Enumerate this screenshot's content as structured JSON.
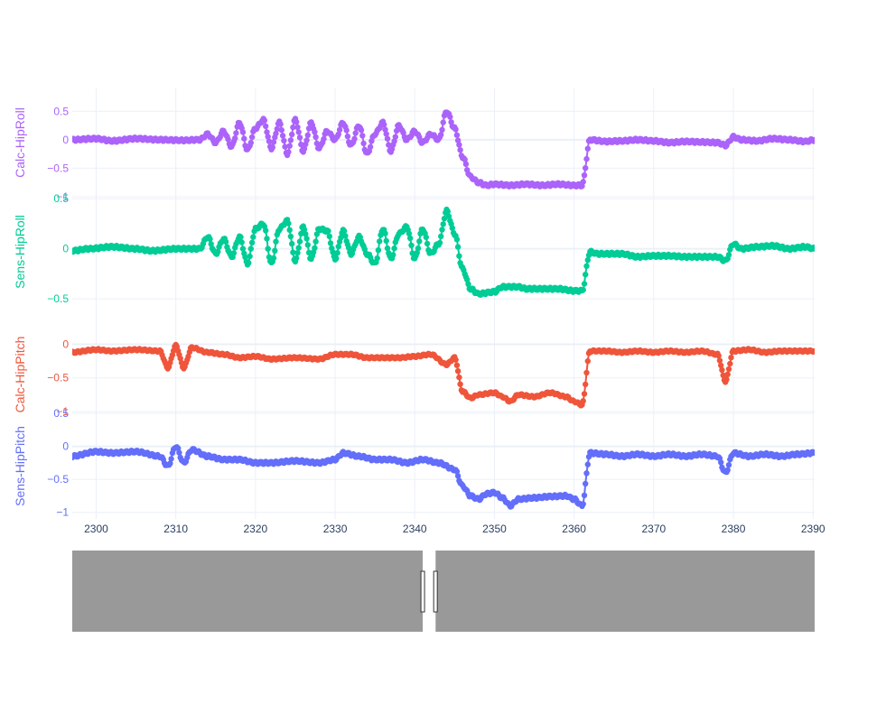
{
  "chart_data": {
    "type": "line",
    "mode": "lines+markers",
    "x_range": [
      2297,
      2390.2
    ],
    "x_ticks": [
      2300,
      2310,
      2320,
      2330,
      2340,
      2350,
      2360,
      2370,
      2380,
      2390
    ],
    "grid": true,
    "shared_x_axis": true,
    "range_slider": {
      "visible": true,
      "selected_range": [
        2341,
        2342.6
      ],
      "color": "#999999"
    },
    "panels": [
      {
        "name": "Calc-HipRoll",
        "ylabel": "Calc-HipRoll",
        "color": "#ab63fa",
        "ylim": [
          -1,
          0.9
        ],
        "y_ticks": [
          0.5,
          0,
          -0.5,
          -1
        ],
        "y_tick_labels": [
          "0.5",
          "0",
          "−0.5",
          "−1"
        ],
        "points": [
          [
            2297,
            0.0
          ],
          [
            2300,
            0.02
          ],
          [
            2302,
            -0.02
          ],
          [
            2305,
            0.02
          ],
          [
            2308,
            0.0
          ],
          [
            2311,
            -0.01
          ],
          [
            2313,
            0.0
          ],
          [
            2314,
            0.1
          ],
          [
            2315,
            -0.05
          ],
          [
            2316,
            0.15
          ],
          [
            2317,
            -0.12
          ],
          [
            2318,
            0.3
          ],
          [
            2319,
            -0.18
          ],
          [
            2320,
            0.2
          ],
          [
            2321,
            0.35
          ],
          [
            2322,
            -0.15
          ],
          [
            2323,
            0.3
          ],
          [
            2324,
            -0.25
          ],
          [
            2325,
            0.35
          ],
          [
            2326,
            -0.2
          ],
          [
            2327,
            0.3
          ],
          [
            2328,
            -0.15
          ],
          [
            2329,
            0.15
          ],
          [
            2330,
            0.0
          ],
          [
            2331,
            0.3
          ],
          [
            2332,
            -0.1
          ],
          [
            2333,
            0.25
          ],
          [
            2334,
            -0.25
          ],
          [
            2335,
            0.1
          ],
          [
            2336,
            0.3
          ],
          [
            2337,
            -0.2
          ],
          [
            2338,
            0.25
          ],
          [
            2339,
            0.0
          ],
          [
            2340,
            0.15
          ],
          [
            2341,
            -0.05
          ],
          [
            2342,
            0.1
          ],
          [
            2343,
            0.0
          ],
          [
            2344,
            0.5
          ],
          [
            2345,
            0.2
          ],
          [
            2346,
            -0.3
          ],
          [
            2347,
            -0.65
          ],
          [
            2348,
            -0.75
          ],
          [
            2349,
            -0.8
          ],
          [
            2350,
            -0.78
          ],
          [
            2352,
            -0.8
          ],
          [
            2354,
            -0.78
          ],
          [
            2356,
            -0.8
          ],
          [
            2358,
            -0.78
          ],
          [
            2360,
            -0.8
          ],
          [
            2361,
            -0.8
          ],
          [
            2362,
            0.0
          ],
          [
            2364,
            -0.03
          ],
          [
            2366,
            -0.02
          ],
          [
            2368,
            0.0
          ],
          [
            2370,
            -0.02
          ],
          [
            2372,
            -0.05
          ],
          [
            2374,
            -0.03
          ],
          [
            2376,
            -0.04
          ],
          [
            2378,
            -0.05
          ],
          [
            2379,
            -0.1
          ],
          [
            2380,
            0.05
          ],
          [
            2381,
            0.0
          ],
          [
            2383,
            -0.02
          ],
          [
            2385,
            0.02
          ],
          [
            2387,
            0.0
          ],
          [
            2389,
            -0.03
          ],
          [
            2390.2,
            0.0
          ]
        ]
      },
      {
        "name": "Sens-HipRoll",
        "ylabel": "Sens-HipRoll",
        "color": "#00cc96",
        "ylim": [
          -0.58,
          0.52
        ],
        "y_ticks": [
          0.5,
          0,
          -0.5
        ],
        "y_tick_labels": [
          "0.5",
          "0",
          "−0.5"
        ],
        "points": [
          [
            2297,
            -0.02
          ],
          [
            2299,
            0.0
          ],
          [
            2302,
            0.02
          ],
          [
            2305,
            0.0
          ],
          [
            2307,
            -0.02
          ],
          [
            2310,
            0.0
          ],
          [
            2313,
            0.0
          ],
          [
            2314,
            0.12
          ],
          [
            2315,
            -0.05
          ],
          [
            2316,
            0.1
          ],
          [
            2317,
            -0.08
          ],
          [
            2318,
            0.12
          ],
          [
            2319,
            -0.15
          ],
          [
            2320,
            0.2
          ],
          [
            2321,
            0.25
          ],
          [
            2322,
            -0.15
          ],
          [
            2323,
            0.2
          ],
          [
            2324,
            0.28
          ],
          [
            2325,
            -0.12
          ],
          [
            2326,
            0.22
          ],
          [
            2327,
            -0.1
          ],
          [
            2328,
            0.2
          ],
          [
            2329,
            0.18
          ],
          [
            2330,
            -0.1
          ],
          [
            2331,
            0.18
          ],
          [
            2332,
            -0.05
          ],
          [
            2333,
            0.12
          ],
          [
            2334,
            -0.05
          ],
          [
            2335,
            -0.15
          ],
          [
            2336,
            0.2
          ],
          [
            2337,
            -0.1
          ],
          [
            2338,
            0.15
          ],
          [
            2339,
            0.22
          ],
          [
            2340,
            -0.1
          ],
          [
            2341,
            0.2
          ],
          [
            2342,
            -0.05
          ],
          [
            2343,
            0.05
          ],
          [
            2344,
            0.38
          ],
          [
            2345,
            0.15
          ],
          [
            2346,
            -0.2
          ],
          [
            2347,
            -0.4
          ],
          [
            2348,
            -0.45
          ],
          [
            2350,
            -0.43
          ],
          [
            2351,
            -0.38
          ],
          [
            2353,
            -0.38
          ],
          [
            2354,
            -0.4
          ],
          [
            2356,
            -0.4
          ],
          [
            2358,
            -0.4
          ],
          [
            2360,
            -0.42
          ],
          [
            2361,
            -0.42
          ],
          [
            2362,
            -0.03
          ],
          [
            2363,
            -0.05
          ],
          [
            2366,
            -0.05
          ],
          [
            2368,
            -0.08
          ],
          [
            2370,
            -0.07
          ],
          [
            2372,
            -0.07
          ],
          [
            2374,
            -0.08
          ],
          [
            2376,
            -0.08
          ],
          [
            2378,
            -0.08
          ],
          [
            2379,
            -0.12
          ],
          [
            2380,
            0.05
          ],
          [
            2381,
            0.0
          ],
          [
            2383,
            0.02
          ],
          [
            2385,
            0.03
          ],
          [
            2387,
            0.0
          ],
          [
            2389,
            0.02
          ],
          [
            2390.2,
            0.0
          ]
        ]
      },
      {
        "name": "Calc-HipPitch",
        "ylabel": "Calc-HipPitch",
        "color": "#ef553b",
        "ylim": [
          -1,
          0.1
        ],
        "y_ticks": [
          0,
          -0.5,
          -1
        ],
        "y_tick_labels": [
          "0",
          "−0.5",
          "−1"
        ],
        "points": [
          [
            2297,
            -0.12
          ],
          [
            2300,
            -0.08
          ],
          [
            2302,
            -0.1
          ],
          [
            2305,
            -0.08
          ],
          [
            2308,
            -0.1
          ],
          [
            2309,
            -0.35
          ],
          [
            2310,
            -0.02
          ],
          [
            2311,
            -0.35
          ],
          [
            2312,
            -0.05
          ],
          [
            2314,
            -0.12
          ],
          [
            2316,
            -0.15
          ],
          [
            2318,
            -0.2
          ],
          [
            2320,
            -0.18
          ],
          [
            2322,
            -0.22
          ],
          [
            2325,
            -0.2
          ],
          [
            2328,
            -0.22
          ],
          [
            2330,
            -0.15
          ],
          [
            2332,
            -0.15
          ],
          [
            2334,
            -0.2
          ],
          [
            2336,
            -0.2
          ],
          [
            2338,
            -0.2
          ],
          [
            2340,
            -0.18
          ],
          [
            2342,
            -0.15
          ],
          [
            2344,
            -0.3
          ],
          [
            2345,
            -0.2
          ],
          [
            2346,
            -0.7
          ],
          [
            2347,
            -0.8
          ],
          [
            2348,
            -0.75
          ],
          [
            2350,
            -0.72
          ],
          [
            2351,
            -0.78
          ],
          [
            2352,
            -0.85
          ],
          [
            2353,
            -0.75
          ],
          [
            2355,
            -0.78
          ],
          [
            2357,
            -0.72
          ],
          [
            2359,
            -0.78
          ],
          [
            2360,
            -0.85
          ],
          [
            2361,
            -0.9
          ],
          [
            2362,
            -0.1
          ],
          [
            2364,
            -0.1
          ],
          [
            2366,
            -0.12
          ],
          [
            2368,
            -0.1
          ],
          [
            2370,
            -0.12
          ],
          [
            2372,
            -0.1
          ],
          [
            2374,
            -0.12
          ],
          [
            2376,
            -0.1
          ],
          [
            2378,
            -0.15
          ],
          [
            2379,
            -0.55
          ],
          [
            2380,
            -0.1
          ],
          [
            2382,
            -0.08
          ],
          [
            2384,
            -0.12
          ],
          [
            2386,
            -0.1
          ],
          [
            2388,
            -0.1
          ],
          [
            2390.2,
            -0.1
          ]
        ]
      },
      {
        "name": "Sens-HipPitch",
        "ylabel": "Sens-HipPitch",
        "color": "#636efa",
        "ylim": [
          -1.1,
          0.5
        ],
        "y_ticks": [
          0.5,
          0,
          -0.5,
          -1
        ],
        "y_tick_labels": [
          "0.5",
          "0",
          "−0.5",
          "−1"
        ],
        "points": [
          [
            2297,
            -0.15
          ],
          [
            2300,
            -0.08
          ],
          [
            2302,
            -0.1
          ],
          [
            2305,
            -0.08
          ],
          [
            2308,
            -0.15
          ],
          [
            2309,
            -0.3
          ],
          [
            2310,
            0.0
          ],
          [
            2311,
            -0.25
          ],
          [
            2312,
            -0.05
          ],
          [
            2314,
            -0.15
          ],
          [
            2316,
            -0.2
          ],
          [
            2318,
            -0.2
          ],
          [
            2320,
            -0.25
          ],
          [
            2322,
            -0.25
          ],
          [
            2325,
            -0.22
          ],
          [
            2328,
            -0.25
          ],
          [
            2330,
            -0.2
          ],
          [
            2331,
            -0.1
          ],
          [
            2333,
            -0.15
          ],
          [
            2335,
            -0.2
          ],
          [
            2337,
            -0.2
          ],
          [
            2339,
            -0.25
          ],
          [
            2341,
            -0.2
          ],
          [
            2343,
            -0.25
          ],
          [
            2345,
            -0.35
          ],
          [
            2346,
            -0.6
          ],
          [
            2347,
            -0.75
          ],
          [
            2348,
            -0.8
          ],
          [
            2349,
            -0.72
          ],
          [
            2350,
            -0.7
          ],
          [
            2351,
            -0.78
          ],
          [
            2352,
            -0.9
          ],
          [
            2353,
            -0.8
          ],
          [
            2355,
            -0.78
          ],
          [
            2357,
            -0.76
          ],
          [
            2359,
            -0.75
          ],
          [
            2360,
            -0.8
          ],
          [
            2361,
            -0.9
          ],
          [
            2362,
            -0.1
          ],
          [
            2364,
            -0.12
          ],
          [
            2366,
            -0.15
          ],
          [
            2368,
            -0.12
          ],
          [
            2370,
            -0.15
          ],
          [
            2372,
            -0.12
          ],
          [
            2374,
            -0.15
          ],
          [
            2376,
            -0.12
          ],
          [
            2378,
            -0.15
          ],
          [
            2379,
            -0.4
          ],
          [
            2380,
            -0.1
          ],
          [
            2382,
            -0.15
          ],
          [
            2384,
            -0.12
          ],
          [
            2386,
            -0.15
          ],
          [
            2388,
            -0.12
          ],
          [
            2390.2,
            -0.1
          ]
        ]
      }
    ]
  }
}
